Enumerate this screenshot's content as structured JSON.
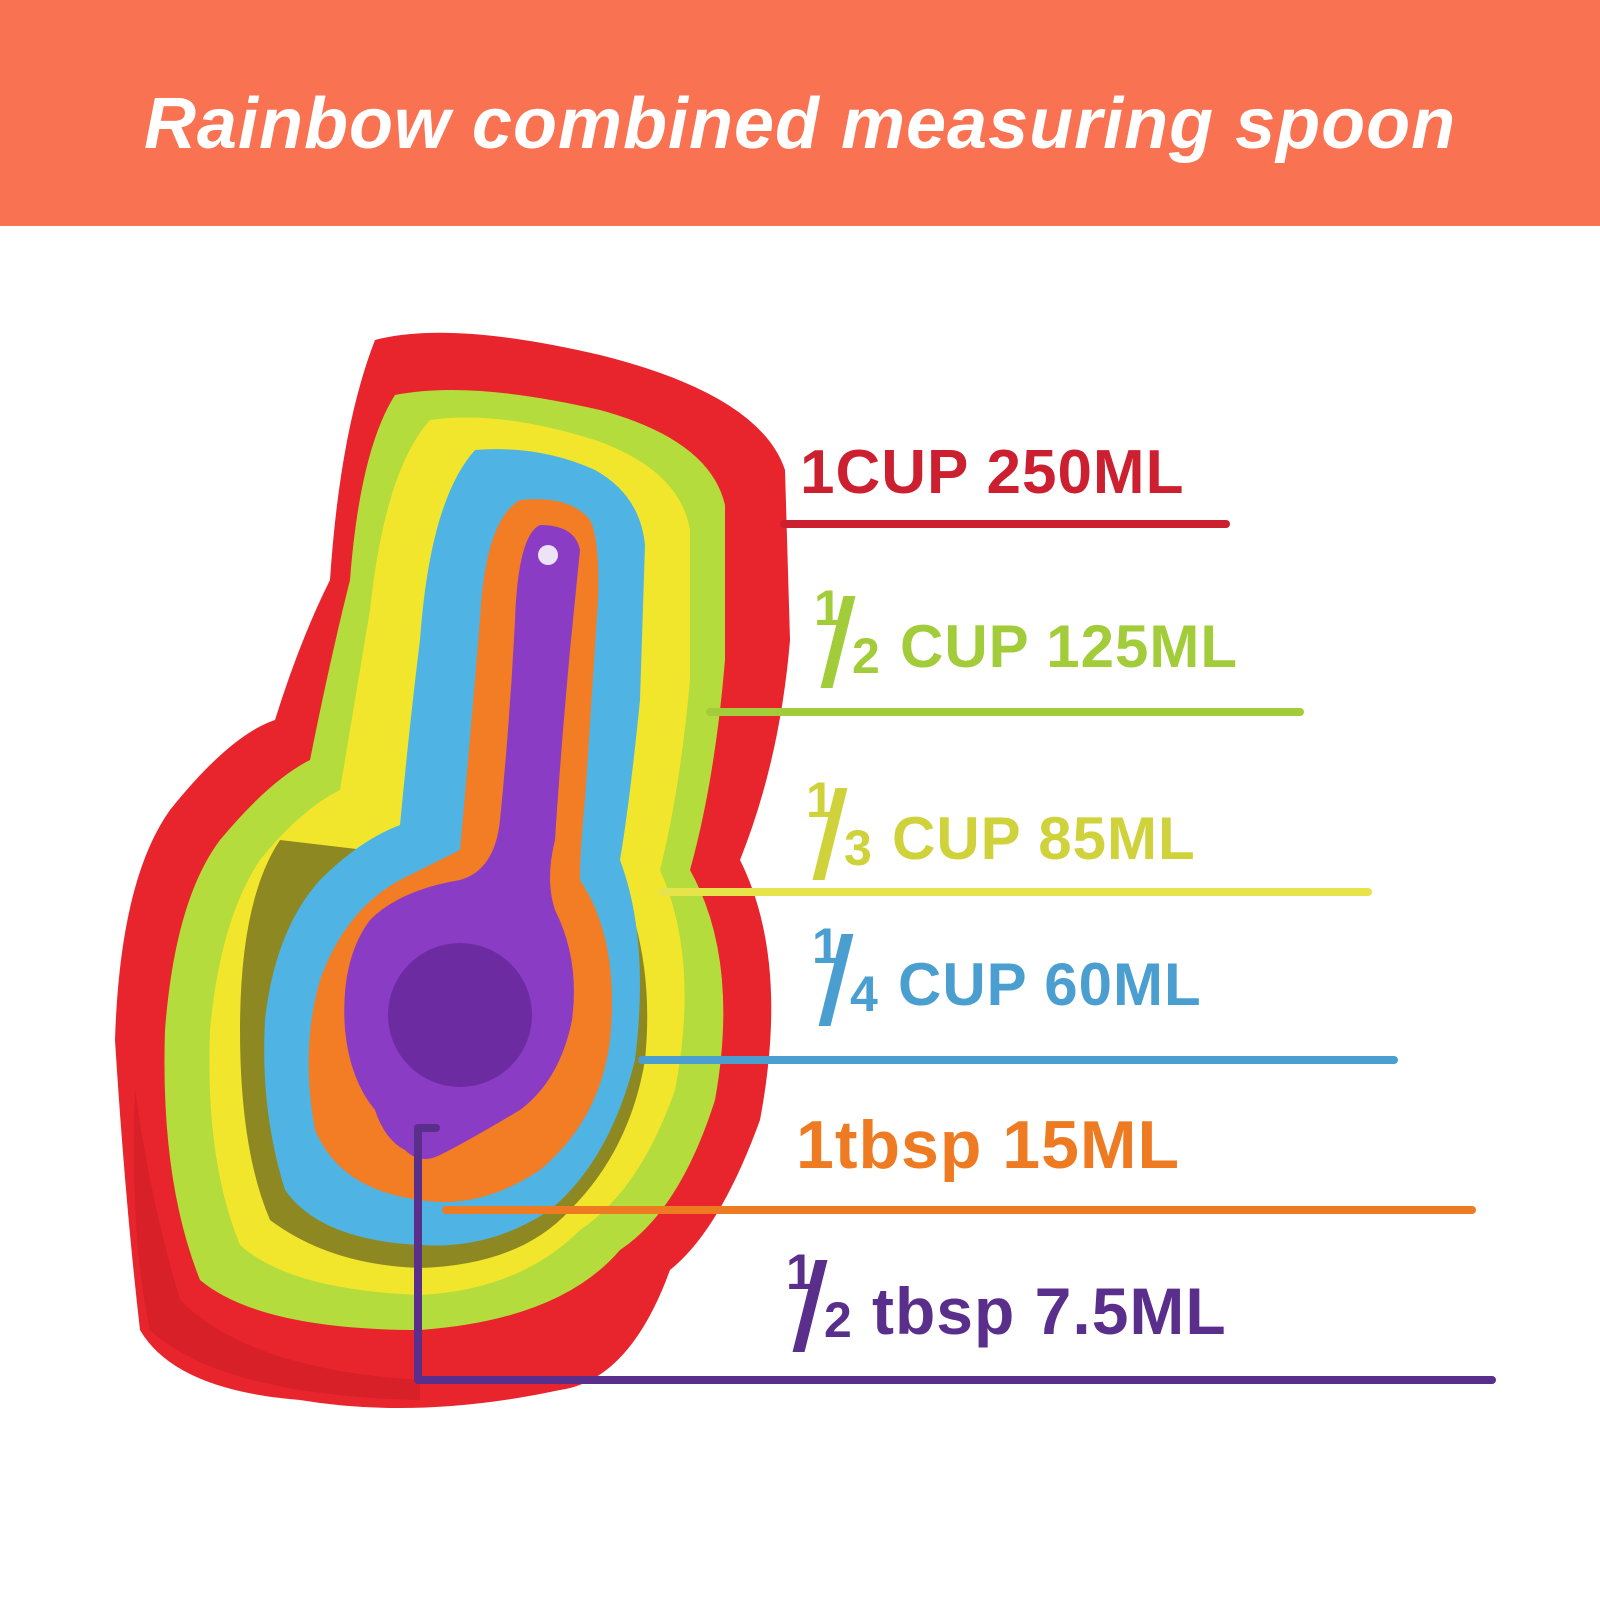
{
  "header": {
    "title": "Rainbow combined measuring spoon",
    "background_color": "#f97353"
  },
  "labels": [
    {
      "prefix": "",
      "numerator": "",
      "denominator": "",
      "text": "1CUP 250ML",
      "color": "#cc1f2f"
    },
    {
      "prefix": "",
      "numerator": "1",
      "denominator": "2",
      "text": "CUP 125ML",
      "color": "#a2cc3a"
    },
    {
      "prefix": "",
      "numerator": "1",
      "denominator": "3",
      "text": "CUP 85ML",
      "color": "#cfd23a"
    },
    {
      "prefix": "",
      "numerator": "1",
      "denominator": "4",
      "text": "CUP 60ML",
      "color": "#4a9fd0"
    },
    {
      "prefix": "",
      "numerator": "",
      "denominator": "",
      "text": "1tbsp 15ML",
      "color": "#ee7a22"
    },
    {
      "prefix": "",
      "numerator": "1",
      "denominator": "2",
      "text": "tbsp 7.5ML",
      "color": "#5a2f8c"
    }
  ],
  "cup_colors": {
    "red": "#e8242c",
    "green": "#b4dc3c",
    "yellow": "#f2e62c",
    "blue": "#4fb4e4",
    "orange": "#f27d24",
    "purple": "#8a3cc4"
  }
}
